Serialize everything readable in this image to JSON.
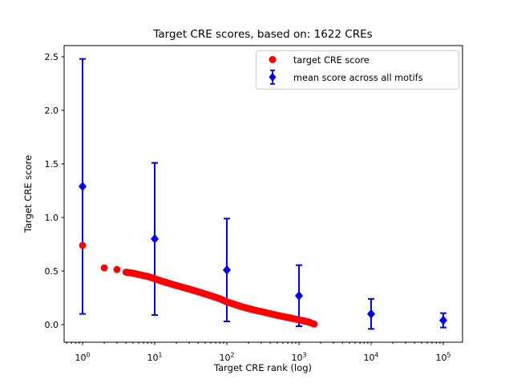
{
  "chart_data": {
    "type": "scatter",
    "title": "Target CRE scores, based on: 1622 CREs",
    "xlabel": "Target CRE rank (log)",
    "ylabel": "Target CRE score",
    "x_scale": "log",
    "xlim": [
      0.55,
      185000
    ],
    "ylim": [
      -0.16,
      2.6
    ],
    "grid": false,
    "xticks": [
      {
        "value": 1,
        "base": "10",
        "exp": "0"
      },
      {
        "value": 10,
        "base": "10",
        "exp": "1"
      },
      {
        "value": 100,
        "base": "10",
        "exp": "2"
      },
      {
        "value": 1000,
        "base": "10",
        "exp": "3"
      },
      {
        "value": 10000,
        "base": "10",
        "exp": "4"
      },
      {
        "value": 100000,
        "base": "10",
        "exp": "5"
      }
    ],
    "yticks": [
      {
        "value": 0.0,
        "label": "0.0"
      },
      {
        "value": 0.5,
        "label": "0.5"
      },
      {
        "value": 1.0,
        "label": "1.0"
      },
      {
        "value": 1.5,
        "label": "1.5"
      },
      {
        "value": 2.0,
        "label": "2.0"
      },
      {
        "value": 2.5,
        "label": "2.5"
      }
    ],
    "legend": {
      "position": "upper right",
      "entries": [
        {
          "label": "target CRE score",
          "marker": "circle",
          "color": "#ff0000"
        },
        {
          "label": "mean score across all motifs",
          "marker": "diamond-errorbar",
          "color": "#0000ff"
        }
      ]
    },
    "series": [
      {
        "name": "mean score across all motifs",
        "type": "errorbar",
        "marker": "diamond",
        "color": "#0000ff",
        "points": [
          {
            "x": 1,
            "y": 1.29,
            "err": 1.19
          },
          {
            "x": 10,
            "y": 0.8,
            "err": 0.71
          },
          {
            "x": 100,
            "y": 0.51,
            "err": 0.48
          },
          {
            "x": 1000,
            "y": 0.27,
            "err": 0.285
          },
          {
            "x": 10000,
            "y": 0.1,
            "err": 0.14
          },
          {
            "x": 100000,
            "y": 0.04,
            "err": 0.067
          }
        ]
      },
      {
        "name": "target CRE score",
        "type": "scatter",
        "marker": "circle",
        "color": "#ff0000",
        "n_points_depicted": 1622,
        "points": [
          [
            1,
            0.74
          ],
          [
            2,
            0.53
          ],
          [
            3,
            0.515
          ],
          [
            4,
            0.49
          ],
          [
            5,
            0.48
          ],
          [
            6,
            0.468
          ],
          [
            7,
            0.458
          ],
          [
            8,
            0.45
          ],
          [
            9,
            0.44
          ],
          [
            10,
            0.428
          ],
          [
            12,
            0.41
          ],
          [
            15,
            0.39
          ],
          [
            20,
            0.365
          ],
          [
            25,
            0.347
          ],
          [
            30,
            0.332
          ],
          [
            40,
            0.307
          ],
          [
            50,
            0.287
          ],
          [
            65,
            0.262
          ],
          [
            80,
            0.242
          ],
          [
            100,
            0.212
          ],
          [
            130,
            0.188
          ],
          [
            160,
            0.168
          ],
          [
            200,
            0.15
          ],
          [
            250,
            0.134
          ],
          [
            320,
            0.118
          ],
          [
            400,
            0.102
          ],
          [
            500,
            0.087
          ],
          [
            650,
            0.071
          ],
          [
            800,
            0.059
          ],
          [
            1000,
            0.045
          ],
          [
            1200,
            0.033
          ],
          [
            1400,
            0.022
          ],
          [
            1622,
            0.005
          ]
        ]
      }
    ]
  }
}
